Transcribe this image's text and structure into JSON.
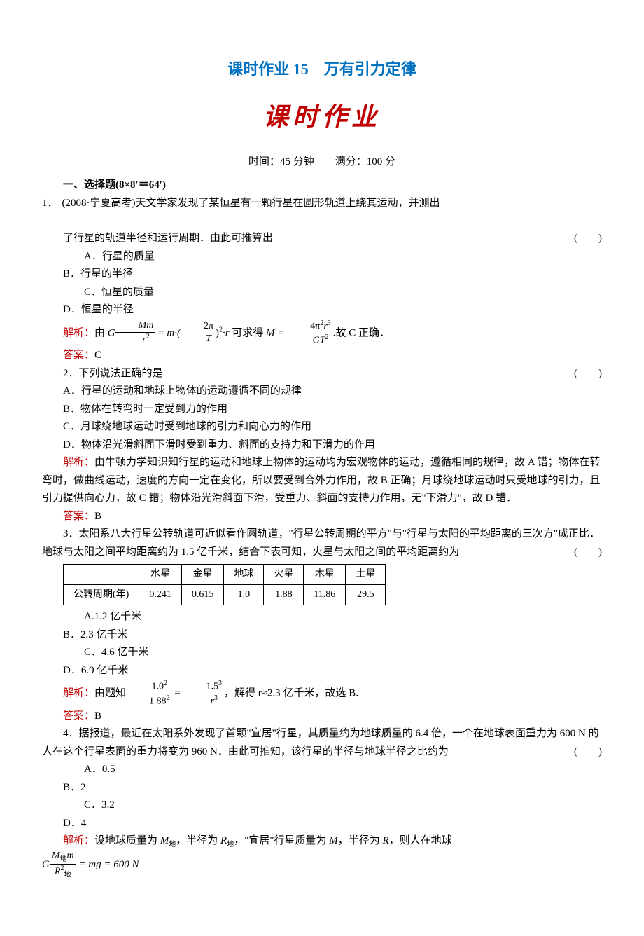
{
  "header": {
    "title": "课时作业 15　万有引力定律",
    "subtitle": "课时作业",
    "time_score": "时间：45 分钟　　满分：100 分",
    "section1": "一、选择题(8×8′＝64′)"
  },
  "q1": {
    "num": "1．",
    "stem": "(2008·宁夏高考)天文学家发现了某恒星有一颗行星在圆形轨道上绕其运动，并测出",
    "stem2": "了行星的轨道半径和运行周期．由此可推算出",
    "paren": "(　　)",
    "optA": "A．行星的质量",
    "optB": "B．行星的半径",
    "optC": "C．恒星的质量",
    "optD": "D．恒星的半径",
    "jiexi_label": "解析：",
    "jiexi_pre": "由 ",
    "jiexi_mid1": " 可求得 ",
    "jiexi_mid2": ".故 C 正确．",
    "ans_label": "答案：",
    "ans": "C"
  },
  "f1": {
    "G": "G",
    "Mm": "Mm",
    "r2": "r",
    "eq": " = ",
    "m": "m·(",
    "twopi": "2π",
    "T": "T",
    "sq": ")",
    "r": "·r",
    "M": "M = ",
    "fourpi": "4π",
    "r3": "r",
    "GT2": "GT"
  },
  "q2": {
    "stem": "2．下列说法正确的是",
    "paren": "(　　)",
    "optA": "A．行星的运动和地球上物体的运动遵循不同的规律",
    "optB": "B．物体在转弯时一定受到力的作用",
    "optC": "C．月球绕地球运动时受到地球的引力和向心力的作用",
    "optD": "D．物体沿光滑斜面下滑时受到重力、斜面的支持力和下滑力的作用",
    "jiexi_label": "解析：",
    "jiexi": "由牛顿力学知识知行星的运动和地球上物体的运动均为宏观物体的运动，遵循相同的规律，故 A 错；物体在转弯时，做曲线运动，速度的方向一定在变化，所以要受到合外力作用，故 B 正确；月球绕地球运动时只受地球的引力，且引力提供向心力，故 C 错；物体沿光滑斜面下滑，受重力、斜面的支持力作用，无\"下滑力\"，故 D 错．",
    "ans_label": "答案：",
    "ans": "B"
  },
  "q3": {
    "stem": "3．太阳系八大行星公转轨道可近似看作圆轨道，\"行星公转周期的平方\"与\"行星与太阳的平均距离的三次方\"成正比．地球与太阳之间平均距离约为 1.5 亿千米，结合下表可知，火星与太阳之间的平均距离约为",
    "paren": "(　　)",
    "table": {
      "cols": [
        "",
        "水星",
        "金星",
        "地球",
        "火星",
        "木星",
        "土星"
      ],
      "row_label": "公转周期(年)",
      "rows": [
        [
          "0.241",
          "0.615",
          "1.0",
          "1.88",
          "11.86",
          "29.5"
        ]
      ]
    },
    "optA": "A.1.2 亿千米",
    "optB": "B．2.3 亿千米",
    "optC": "C．4.6 亿千米",
    "optD": "D．6.9 亿千米",
    "jiexi_label": "解析：",
    "jiexi_pre": "由题知",
    "jiexi_post": "，解得 r≈2.3 亿千米，故选 B.",
    "ans_label": "答案：",
    "ans": "B"
  },
  "f3": {
    "n1": "1.0",
    "d1": "1.88",
    "eq": " = ",
    "n2": "1.5",
    "d2": "r"
  },
  "q4": {
    "stem": "4．据报道，最近在太阳系外发现了首颗\"宜居\"行星，其质量约为地球质量的 6.4 倍，一个在地球表面重力为 600 N 的人在这个行星表面的重力将变为 960 N．由此可推知，该行星的半径与地球半径之比约为",
    "paren": "(　　)",
    "optA": "A．0.5",
    "optB": "B．2",
    "optC": "C．3.2",
    "optD": "D．4",
    "jiexi_label": "解析：",
    "jiexi_pre": "设地球质量为 ",
    "jiexi_m1": "M",
    "jiexi_sub1": "地",
    "jiexi_mid1": "，半径为 ",
    "jiexi_r1": "R",
    "jiexi_sub2": "地",
    "jiexi_mid2": "，\"宜居\"行星质量为 ",
    "jiexi_m2": "M",
    "jiexi_mid3": "，半径为 ",
    "jiexi_r2": "R",
    "jiexi_mid4": "，则人在地球",
    "eq_end": " = mg = 600 N"
  },
  "f4": {
    "G": "G",
    "M": "M",
    "sub_di": "地",
    "m": "m",
    "R": "R"
  }
}
